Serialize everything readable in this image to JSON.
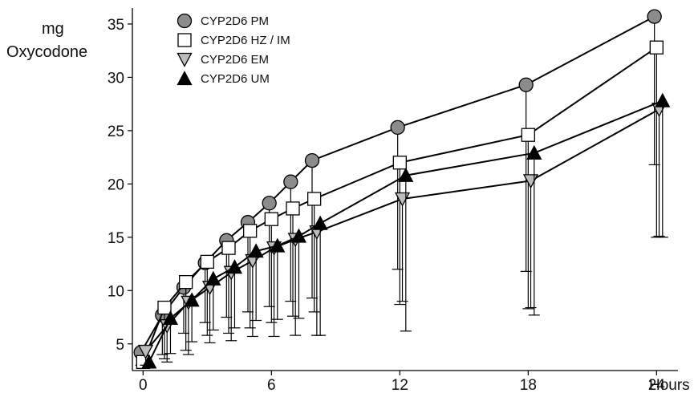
{
  "chart_data": {
    "type": "line",
    "ylabel_line1": "mg",
    "ylabel_line2": "Oxycodone",
    "xunit": "Hours",
    "xlim": [
      -0.5,
      25
    ],
    "ylim": [
      2.5,
      36.5
    ],
    "xticks": [
      0,
      6,
      12,
      18,
      24
    ],
    "yticks": [
      5,
      10,
      15,
      20,
      25,
      30,
      35
    ],
    "legend_position": "top-left",
    "error_bars": "lower only",
    "series": [
      {
        "name": "CYP2D6 PM",
        "marker": "circle",
        "fill": "#8c8c8c",
        "offset": -0.1,
        "x": [
          0,
          1,
          2,
          3,
          4,
          5,
          6,
          7,
          8,
          12,
          18,
          24
        ],
        "y": [
          4.2,
          7.7,
          10.3,
          12.6,
          14.7,
          16.4,
          18.2,
          20.2,
          22.2,
          25.3,
          29.3,
          35.7
        ],
        "lower": [
          3.0,
          4.0,
          6.0,
          7.0,
          7.5,
          8.0,
          8.5,
          9.0,
          9.3,
          12.0,
          11.8,
          21.8
        ]
      },
      {
        "name": "CYP2D6 HZ / IM",
        "marker": "square",
        "fill": "#ffffff",
        "offset": 0.0,
        "x": [
          0,
          1,
          2,
          3,
          4,
          5,
          6,
          7,
          8,
          12,
          18,
          24
        ],
        "y": [
          3.3,
          8.4,
          10.8,
          12.7,
          14.0,
          15.6,
          16.7,
          17.7,
          18.6,
          22.0,
          24.6,
          32.8
        ],
        "lower": [
          2.8,
          3.6,
          4.4,
          5.8,
          6.0,
          6.5,
          7.0,
          7.6,
          8.0,
          8.7,
          8.3,
          15.0
        ]
      },
      {
        "name": "CYP2D6 EM",
        "marker": "triangle-down",
        "fill": "#bdbdbd",
        "offset": 0.12,
        "x": [
          0,
          1,
          2,
          3,
          4,
          5,
          6,
          7,
          8,
          12,
          18,
          24
        ],
        "y": [
          4.3,
          6.7,
          8.9,
          10.3,
          11.7,
          12.8,
          14.0,
          14.8,
          15.5,
          18.6,
          20.3,
          27.0
        ],
        "lower": [
          3.0,
          3.3,
          4.0,
          5.1,
          5.3,
          5.7,
          5.7,
          5.8,
          5.8,
          9.0,
          8.4,
          15.1
        ]
      },
      {
        "name": "CYP2D6 UM",
        "marker": "triangle-up",
        "fill": "#000000",
        "offset": 0.28,
        "x": [
          0,
          1,
          2,
          3,
          4,
          5,
          6,
          7,
          8,
          12,
          18,
          24
        ],
        "y": [
          3.3,
          7.4,
          9.1,
          11.1,
          12.2,
          13.7,
          14.2,
          15.1,
          16.3,
          20.8,
          22.9,
          27.8
        ],
        "lower": [
          2.9,
          4.1,
          5.2,
          6.3,
          6.5,
          7.2,
          7.3,
          7.4,
          5.8,
          6.2,
          7.7,
          15.0
        ]
      }
    ]
  }
}
